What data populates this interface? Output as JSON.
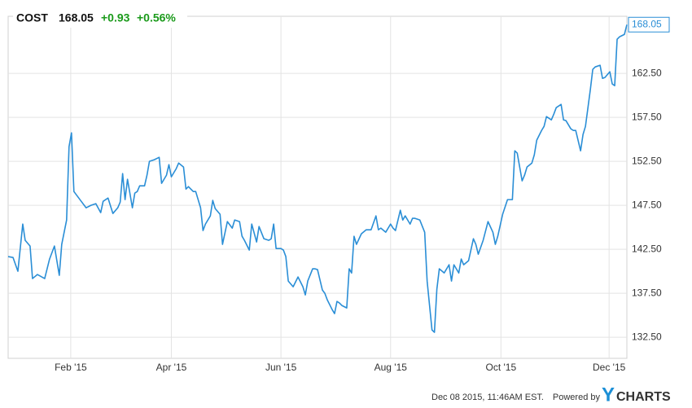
{
  "header": {
    "symbol": "COST",
    "price": "168.05",
    "change": "+0.93",
    "change_pct": "+0.56%"
  },
  "footer": {
    "timestamp": "Dec 08 2015, 11:46AM EST.",
    "powered_by": "Powered by",
    "brand_y": "Y",
    "brand_rest": "CHARTS"
  },
  "chart_data": {
    "type": "line",
    "color": "#2a8ed6",
    "grid": true,
    "xlim": [
      0,
      254
    ],
    "ylim": [
      130.1,
      169.0
    ],
    "xticks": [
      {
        "value": 25.7,
        "label": "Feb '15"
      },
      {
        "value": 67,
        "label": "Apr '15"
      },
      {
        "value": 112,
        "label": "Jun '15"
      },
      {
        "value": 157,
        "label": "Aug '15"
      },
      {
        "value": 202.3,
        "label": "Oct '15"
      },
      {
        "value": 246.7,
        "label": "Dec '15"
      }
    ],
    "yticks": [
      {
        "value": 132.5,
        "label": "132.50"
      },
      {
        "value": 137.5,
        "label": "137.50"
      },
      {
        "value": 142.5,
        "label": "142.50"
      },
      {
        "value": 147.5,
        "label": "147.50"
      },
      {
        "value": 152.5,
        "label": "152.50"
      },
      {
        "value": 157.5,
        "label": "157.50"
      },
      {
        "value": 162.5,
        "label": "162.50"
      }
    ],
    "x": [
      0,
      2,
      4,
      6,
      7,
      9,
      10,
      12,
      15,
      17,
      19,
      21,
      22,
      24,
      25,
      26,
      27,
      30,
      32,
      34,
      36,
      38,
      39,
      41,
      43,
      45,
      46,
      47,
      48,
      49,
      51,
      52,
      53,
      54,
      56,
      57,
      58,
      60,
      62,
      63,
      65,
      66,
      67,
      69,
      70,
      72,
      73,
      74,
      76,
      77,
      79,
      80,
      81,
      83,
      84,
      85,
      87,
      88,
      90,
      92,
      93,
      95,
      96,
      97,
      99,
      100,
      102,
      103,
      105,
      107,
      108,
      109,
      110,
      112,
      113,
      114,
      115,
      117,
      119,
      121,
      122,
      123,
      125,
      126,
      127,
      129,
      130,
      131,
      133,
      134,
      135,
      136,
      137,
      139,
      140,
      141,
      142,
      143,
      145,
      147,
      149,
      151,
      152,
      153,
      155,
      157,
      158,
      159,
      161,
      162,
      163,
      165,
      166,
      167,
      169,
      171,
      172,
      173,
      174,
      175,
      176,
      177,
      179,
      181,
      182,
      183,
      185,
      186,
      187,
      189,
      191,
      192,
      193,
      195,
      197,
      199,
      200,
      201,
      203,
      205,
      207,
      208,
      209,
      211,
      212,
      213,
      215,
      216,
      217,
      219,
      220,
      221,
      223,
      224,
      225,
      227,
      228,
      229,
      231,
      232,
      233,
      235,
      236,
      237,
      239,
      240,
      241,
      243,
      244,
      245,
      247,
      248,
      249,
      250,
      251,
      253,
      254
    ],
    "values": [
      141.67,
      141.57,
      140.0,
      145.37,
      143.52,
      142.87,
      139.17,
      139.63,
      139.17,
      141.39,
      142.87,
      139.54,
      143.06,
      145.83,
      154.17,
      155.74,
      149.07,
      147.96,
      147.22,
      147.5,
      147.69,
      146.67,
      147.96,
      148.33,
      146.57,
      147.22,
      147.87,
      151.11,
      148.15,
      150.46,
      147.22,
      148.89,
      149.07,
      149.72,
      149.72,
      150.93,
      152.5,
      152.69,
      152.96,
      150.0,
      150.93,
      152.13,
      150.74,
      151.67,
      152.31,
      151.85,
      149.35,
      149.63,
      149.07,
      149.07,
      147.22,
      144.63,
      145.37,
      146.3,
      148.06,
      147.13,
      146.48,
      143.06,
      145.65,
      144.91,
      145.83,
      145.65,
      144.0,
      143.52,
      142.41,
      145.37,
      143.33,
      145.09,
      143.7,
      143.52,
      143.7,
      145.37,
      142.59,
      142.59,
      142.41,
      141.67,
      138.89,
      138.24,
      139.35,
      138.24,
      137.31,
      138.89,
      140.28,
      140.28,
      140.19,
      137.87,
      137.5,
      136.76,
      135.65,
      135.19,
      136.57,
      136.39,
      136.11,
      135.83,
      140.28,
      139.81,
      143.98,
      143.06,
      144.26,
      144.72,
      144.72,
      146.3,
      144.72,
      144.91,
      144.44,
      145.37,
      144.91,
      144.63,
      146.94,
      145.83,
      146.3,
      145.37,
      146.02,
      146.02,
      145.83,
      144.44,
      138.89,
      136.11,
      133.33,
      133.06,
      137.96,
      140.28,
      139.81,
      140.74,
      138.89,
      140.74,
      139.81,
      141.39,
      140.74,
      141.2,
      143.7,
      143.06,
      141.94,
      143.52,
      145.65,
      144.44,
      143.06,
      143.98,
      146.48,
      148.15,
      148.15,
      153.7,
      153.43,
      150.28,
      150.93,
      151.85,
      152.31,
      153.24,
      154.91,
      156.02,
      156.48,
      157.59,
      157.22,
      157.87,
      158.61,
      158.98,
      157.22,
      157.13,
      156.2,
      156.02,
      156.02,
      153.7,
      155.56,
      156.48,
      160.65,
      162.96,
      163.24,
      163.43,
      161.94,
      162.04,
      162.69,
      161.3,
      161.11,
      166.39,
      166.67,
      166.94,
      168.05
    ]
  }
}
